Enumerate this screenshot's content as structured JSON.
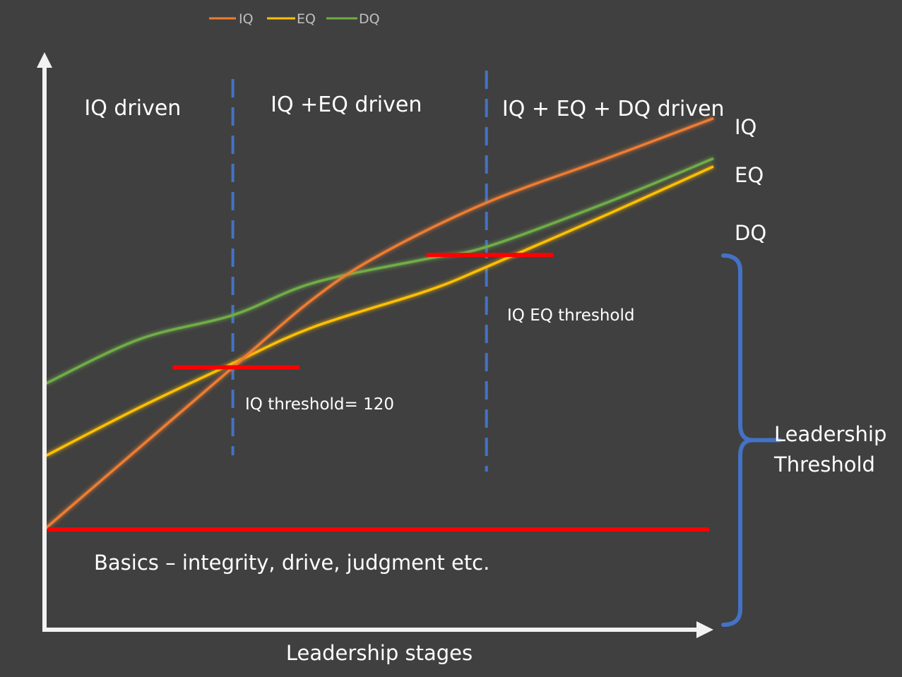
{
  "chart_data": {
    "type": "line",
    "title": "",
    "xlabel": "Leadership stages",
    "ylabel": "",
    "xlim": [
      0,
      100
    ],
    "ylim": [
      0,
      100
    ],
    "grid": false,
    "legend": {
      "placement": "top-left",
      "entries": [
        "IQ",
        "EQ",
        "DQ"
      ]
    },
    "colors": {
      "IQ": "#ed7d31",
      "EQ": "#ffc000",
      "DQ": "#70ad47",
      "threshold": "#ff0000",
      "stage_divider": "#4472c4",
      "bracket": "#4472c4",
      "axis": "#f2f2f2",
      "background": "#404040"
    },
    "series": [
      {
        "name": "IQ",
        "x": [
          0,
          14,
          28,
          40,
          50,
          66,
          84,
          100
        ],
        "y": [
          0,
          20,
          40,
          57,
          68,
          81,
          92,
          102
        ]
      },
      {
        "name": "EQ",
        "x": [
          0,
          14,
          28,
          40,
          57,
          66,
          84,
          100
        ],
        "y": [
          18,
          30,
          41,
          50,
          59,
          65,
          78,
          90
        ]
      },
      {
        "name": "DQ",
        "x": [
          0,
          14,
          28,
          40,
          57,
          66,
          84,
          100
        ],
        "y": [
          36,
          47,
          53,
          61,
          67,
          70,
          81,
          92
        ]
      }
    ],
    "end_labels": [
      "IQ",
      "EQ",
      "DQ"
    ],
    "stage_dividers": [
      28,
      66
    ],
    "regions": [
      {
        "label": "IQ driven",
        "x": 13
      },
      {
        "label": "IQ +EQ driven",
        "x": 45
      },
      {
        "label": "IQ + EQ + DQ driven",
        "x": 85
      }
    ],
    "thresholds": [
      {
        "label": "IQ  threshold= 120",
        "x1": 19,
        "x2": 38,
        "y": 40
      },
      {
        "label": "IQ  EQ threshold",
        "x1": 57,
        "x2": 76,
        "y": 68
      }
    ],
    "baseline": {
      "label": "Basics – integrity, drive, judgment etc.",
      "y": 0
    },
    "bracket": {
      "label_line1": "Leadership",
      "label_line2": "Threshold",
      "y_from": -28,
      "y_to": 77
    }
  }
}
